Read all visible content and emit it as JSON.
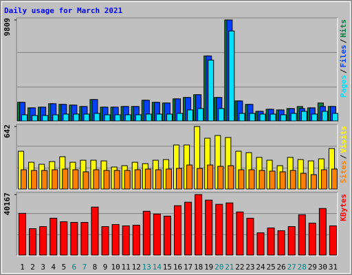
{
  "chart_data": [
    {
      "type": "bar",
      "title": "Daily usage for March 2021",
      "ylim": [
        0,
        9809
      ],
      "yticks": [
        9809
      ],
      "legend_separator": "/",
      "series": [
        {
          "name": "Pages",
          "color": "#00e0ff",
          "values": [
            605,
            537,
            537,
            605,
            672,
            672,
            672,
            739,
            605,
            605,
            605,
            605,
            672,
            672,
            672,
            739,
            1075,
            1209,
            5912,
            1209,
            8734,
            739,
            739,
            672,
            672,
            605,
            739,
            941,
            672,
            941,
            739
          ]
        },
        {
          "name": "Files",
          "color": "#0040ff",
          "values": [
            1814,
            1277,
            1344,
            1680,
            1612,
            1545,
            1411,
            2083,
            1344,
            1344,
            1411,
            1411,
            2016,
            1814,
            1747,
            2150,
            2284,
            2553,
            6315,
            2284,
            9809,
            1948,
            1612,
            941,
            1142,
            1075,
            1209,
            1209,
            1277,
            1411,
            1411
          ]
        },
        {
          "name": "Hits",
          "color": "#008040",
          "values": [
            1814,
            1277,
            1344,
            1680,
            1612,
            1545,
            1411,
            2083,
            1344,
            1344,
            1411,
            1411,
            2016,
            1814,
            1747,
            2150,
            2284,
            2553,
            6315,
            2284,
            9809,
            1948,
            1612,
            941,
            1142,
            1075,
            1209,
            1409,
            1277,
            1747,
            1411
          ]
        }
      ]
    },
    {
      "type": "bar",
      "ylim": [
        0,
        642
      ],
      "yticks": [
        642
      ],
      "legend_separator": "/",
      "series": [
        {
          "name": "Sites",
          "color": "#ff8000",
          "values": [
            198,
            191,
            191,
            198,
            205,
            198,
            177,
            198,
            191,
            191,
            191,
            198,
            205,
            198,
            205,
            212,
            247,
            212,
            247,
            233,
            240,
            198,
            198,
            191,
            184,
            177,
            191,
            162,
            148,
            198,
            205
          ]
        },
        {
          "name": "Visits",
          "color": "#ffff00",
          "values": [
            388,
            275,
            254,
            282,
            332,
            275,
            296,
            296,
            289,
            226,
            240,
            275,
            261,
            296,
            303,
            452,
            452,
            642,
            522,
            550,
            529,
            388,
            374,
            325,
            296,
            240,
            325,
            303,
            289,
            310,
            416
          ]
        }
      ]
    },
    {
      "type": "bar",
      "ylim": [
        0,
        40167
      ],
      "yticks": [
        40167
      ],
      "categories": [
        "1",
        "2",
        "3",
        "4",
        "5",
        "6",
        "7",
        "8",
        "9",
        "10",
        "11",
        "12",
        "13",
        "14",
        "15",
        "16",
        "17",
        "18",
        "19",
        "20",
        "21",
        "22",
        "23",
        "24",
        "25",
        "26",
        "27",
        "28",
        "29",
        "30",
        "31"
      ],
      "category_colors": [
        "#000000",
        "#000000",
        "#000000",
        "#000000",
        "#000000",
        "#008080",
        "#008080",
        "#000000",
        "#000000",
        "#000000",
        "#000000",
        "#000000",
        "#008080",
        "#008080",
        "#000000",
        "#000000",
        "#000000",
        "#000000",
        "#000000",
        "#008080",
        "#008080",
        "#000000",
        "#000000",
        "#000000",
        "#000000",
        "#000000",
        "#008080",
        "#008080",
        "#000000",
        "#000000",
        "#000000"
      ],
      "series": [
        {
          "name": "KBytes",
          "color": "#ff0000",
          "values": [
            27701,
            17544,
            18929,
            24469,
            22161,
            21699,
            21699,
            31856,
            18929,
            20314,
            19391,
            19853,
            29086,
            27239,
            25854,
            32780,
            35088,
            40167,
            36473,
            33703,
            34626,
            28624,
            24469,
            14774,
            18006,
            16159,
            18929,
            26778,
            21237,
            30933,
            19391
          ]
        }
      ]
    }
  ]
}
